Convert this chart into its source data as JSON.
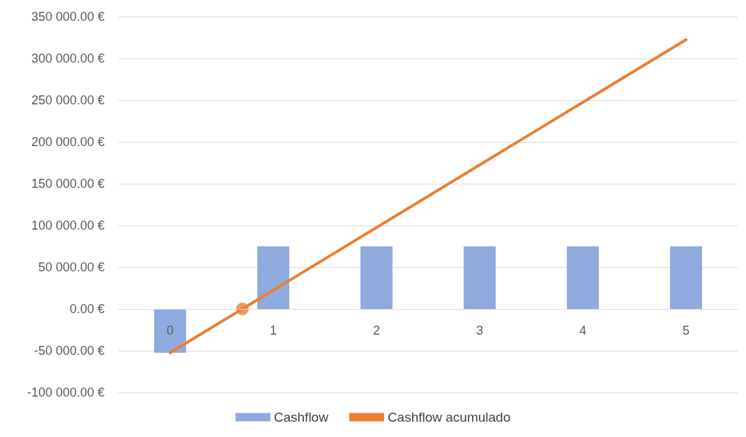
{
  "chart_data": {
    "type": "bar",
    "x": [
      0,
      1,
      2,
      3,
      4,
      5
    ],
    "xlim": [
      -0.5,
      5.5
    ],
    "xticks": [
      0,
      1,
      2,
      3,
      4,
      5
    ],
    "series": [
      {
        "name": "Cashflow",
        "color": "#8faadc",
        "values": [
          -52500,
          75000,
          75000,
          75000,
          75000,
          75000
        ]
      },
      {
        "name": "Cashflow acumulado",
        "type": "line",
        "color": "#ed7d31",
        "marker": "none",
        "values": [
          -52500,
          22500,
          97500,
          172500,
          247500,
          322500
        ]
      },
      {
        "type": "scatter",
        "color": "#ed7d31",
        "marker": "circle",
        "x": [
          0.7
        ],
        "values": [
          0
        ]
      }
    ],
    "ylim": [
      -100000,
      350000
    ],
    "yticks": [
      {
        "value": -100000,
        "label": "-100 000.00 €"
      },
      {
        "value": -50000,
        "label": "-50 000.00 €"
      },
      {
        "value": 0,
        "label": "0.00 €"
      },
      {
        "value": 50000,
        "label": "50 000.00 €"
      },
      {
        "value": 100000,
        "label": "100 000.00 €"
      },
      {
        "value": 150000,
        "label": "150 000.00 €"
      },
      {
        "value": 200000,
        "label": "200 000.00 €"
      },
      {
        "value": 250000,
        "label": "250 000.00 €"
      },
      {
        "value": 300000,
        "label": "300 000.00 €"
      },
      {
        "value": 350000,
        "label": "350 000.00 €"
      }
    ],
    "grid": "y",
    "legend": "bottom"
  }
}
